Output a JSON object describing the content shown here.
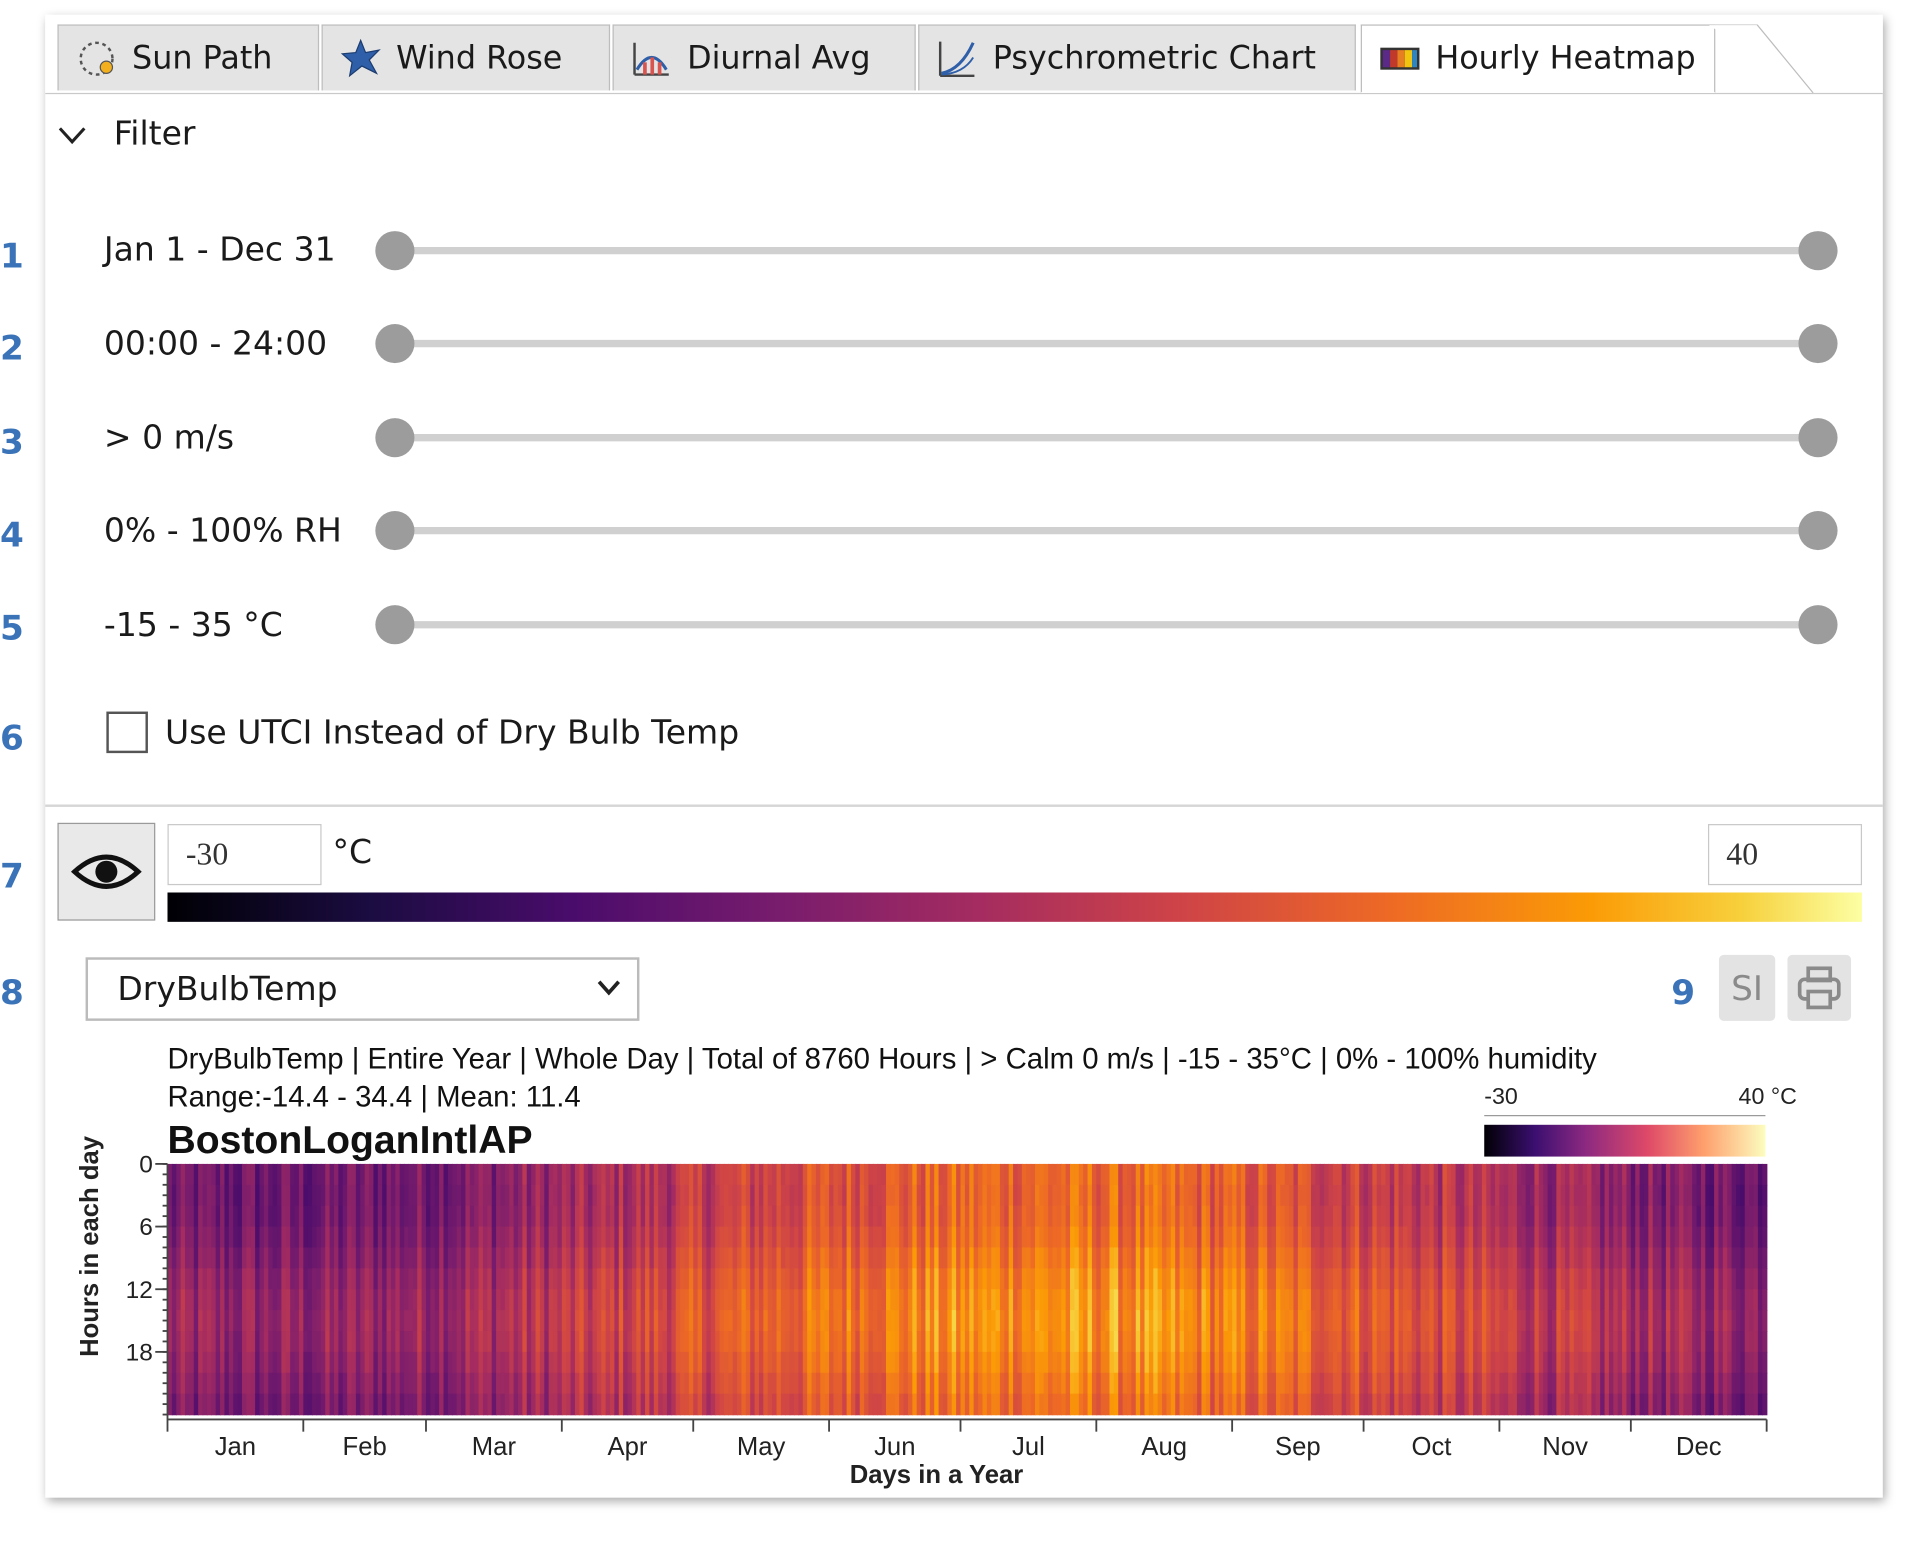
{
  "tabs": [
    {
      "label": "Sun Path",
      "icon": "sun-path-icon",
      "active": false
    },
    {
      "label": "Wind Rose",
      "icon": "wind-rose-icon",
      "active": false
    },
    {
      "label": "Diurnal Avg",
      "icon": "diurnal-avg-icon",
      "active": false
    },
    {
      "label": "Psychrometric Chart",
      "icon": "psychrometric-chart-icon",
      "active": false
    },
    {
      "label": "Hourly Heatmap",
      "icon": "heatmap-icon",
      "active": true
    }
  ],
  "filter": {
    "title": "Filter",
    "rows": [
      {
        "num": "1",
        "label": "Jan 1  -  Dec 31",
        "low": 0,
        "high": 1
      },
      {
        "num": "2",
        "label": "00:00  -  24:00",
        "low": 0,
        "high": 1
      },
      {
        "num": "3",
        "label": "> 0 m/s",
        "low": 0,
        "high": 1
      },
      {
        "num": "4",
        "label": "0%  -  100% RH",
        "low": 0,
        "high": 1
      },
      {
        "num": "5",
        "label": "-15  -  35 °C",
        "low": 0,
        "high": 1
      }
    ],
    "checkbox": {
      "num": "6",
      "label": "Use UTCI Instead of Dry Bulb Temp",
      "checked": false
    }
  },
  "legend": {
    "num": "7",
    "min": "-30",
    "max": "40",
    "unit": "°C"
  },
  "variable": {
    "num": "8",
    "selected": "DryBulbTemp"
  },
  "actions": {
    "num": "9",
    "si_label": "SI"
  },
  "chart_data": {
    "type": "heatmap",
    "subtitle_line1": "DryBulbTemp | Entire Year | Whole Day | Total of 8760 Hours | > Calm 0 m/s | -15 - 35°C | 0% - 100% humidity",
    "subtitle_line2": "Range:-14.4 - 34.4 | Mean: 11.4",
    "title": "BostonLoganIntlAP",
    "xlabel": "Days in a Year",
    "ylabel": "Hours in each day",
    "x_months": [
      "Jan",
      "Feb",
      "Mar",
      "Apr",
      "May",
      "Jun",
      "Jul",
      "Aug",
      "Sep",
      "Oct",
      "Nov",
      "Dec"
    ],
    "y_ticks": [
      "0",
      "6",
      "12",
      "18"
    ],
    "x_range": [
      1,
      365
    ],
    "y_range": [
      0,
      24
    ],
    "colorbar": {
      "min": "-30",
      "max": "40 °C",
      "colormap": "inferno"
    },
    "value_range": [
      -14.4,
      34.4
    ],
    "mean": 11.4
  }
}
